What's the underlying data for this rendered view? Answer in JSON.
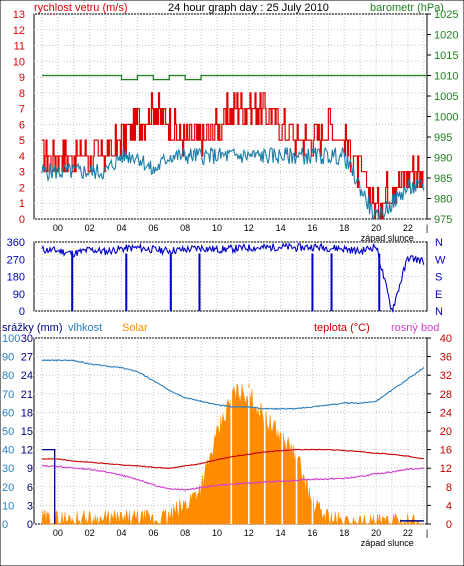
{
  "header": {
    "left_label": "rychlost vetru (m/s)",
    "title": "24 hour graph day : 25 July 2010",
    "right_label": "barometr (hPa)"
  },
  "panel1": {
    "left_ticks": [
      "13",
      "12",
      "11",
      "10",
      "9",
      "8",
      "7",
      "6",
      "5",
      "4",
      "3",
      "2",
      "1",
      "0"
    ],
    "right_ticks": [
      "1025",
      "1020",
      "1015",
      "1010",
      "1005",
      "1000",
      "995",
      "990",
      "985",
      "980",
      "975"
    ]
  },
  "xticks": [
    "00",
    "02",
    "04",
    "06",
    "08",
    "10",
    "12",
    "14",
    "16",
    "18",
    "20",
    "22"
  ],
  "sunset_label": "západ slunce",
  "panel2": {
    "left_ticks": [
      "360",
      "270",
      "180",
      "90",
      "0"
    ],
    "right_labels": [
      "N",
      "W",
      "S",
      "E",
      "N"
    ]
  },
  "panel3": {
    "header_labels": {
      "srazky": "srážky (mm)",
      "vlhkost": "vlhkost",
      "solar": "Solar",
      "teplota": "teplota (°C)",
      "rosny_bod": "rosný bod"
    },
    "srazky_ticks": [
      "30",
      "27",
      "24",
      "21",
      "18",
      "15",
      "12",
      "9",
      "6",
      "3",
      "0"
    ],
    "vlhkost_ticks": [
      "100",
      "90",
      "80",
      "70",
      "60",
      "50",
      "40",
      "30",
      "20",
      "10",
      "0"
    ],
    "right_ticks": [
      "40",
      "36",
      "32",
      "28",
      "24",
      "20",
      "16",
      "12",
      "8",
      "4",
      "0"
    ]
  },
  "colors": {
    "wind_gust": "#e00000",
    "wind_avg": "#1a7fa8",
    "barometer": "#208020",
    "wind_dir": "#0000c8",
    "humidity": "#2a7fc0",
    "solar": "#ff8c00",
    "temperature": "#c80000",
    "dewpoint": "#d040d0",
    "rain": "#000080",
    "grid": "#c8c8c8",
    "left_axis_red": "#e00000",
    "left_axis_blue": "#0000c0"
  },
  "chart_data": [
    {
      "type": "line",
      "series": [
        {
          "name": "rychlost vetru (m/s)",
          "x": [
            -1,
            0,
            1,
            2,
            3,
            4,
            5,
            6,
            7,
            8,
            9,
            10,
            11,
            12,
            13,
            14,
            15,
            16,
            17,
            18,
            19,
            20,
            21,
            22,
            23
          ],
          "values": [
            3,
            3,
            3,
            3,
            3,
            4,
            4,
            3,
            4,
            4,
            4,
            4,
            4,
            4,
            4,
            4,
            4,
            4,
            4,
            4,
            2,
            0,
            1,
            2,
            2
          ]
        },
        {
          "name": "barometr (hPa)",
          "x": [
            -1,
            0,
            1,
            2,
            3,
            4,
            5,
            6,
            7,
            8,
            9,
            10,
            11,
            12,
            13,
            14,
            15,
            16,
            17,
            18,
            19,
            20,
            21,
            22,
            23
          ],
          "values": [
            1010,
            1010,
            1010,
            1010,
            1010,
            1009,
            1010,
            1009,
            1010,
            1009,
            1010,
            1010,
            1010,
            1010,
            1010,
            1010,
            1010,
            1010,
            1010,
            1010,
            1010,
            1010,
            1010,
            1010,
            1010
          ]
        }
      ],
      "wind_gust": {
        "x": [
          -1,
          0,
          1,
          2,
          3,
          4,
          5,
          6,
          7,
          8,
          9,
          10,
          11,
          12,
          13,
          14,
          15,
          16,
          17,
          18,
          19,
          20,
          21,
          22,
          23
        ],
        "values": [
          4,
          4,
          4,
          4,
          4,
          5,
          6,
          7,
          6,
          5,
          5,
          6,
          7,
          7,
          7,
          6,
          5,
          5,
          6,
          5,
          3,
          1,
          2,
          3,
          3
        ]
      },
      "ylim": [
        0,
        13
      ],
      "y2lim": [
        975,
        1025
      ],
      "xlim": [
        -1.5,
        23.2
      ]
    },
    {
      "type": "scatter",
      "series": [
        {
          "name": "wind direction",
          "x": [
            -1,
            0,
            1,
            2,
            3,
            4,
            5,
            6,
            7,
            8,
            9,
            10,
            11,
            12,
            13,
            14,
            15,
            16,
            17,
            18,
            19,
            20,
            21,
            22,
            23
          ],
          "values": [
            320,
            315,
            300,
            320,
            310,
            325,
            330,
            320,
            315,
            320,
            330,
            320,
            325,
            330,
            330,
            335,
            330,
            335,
            330,
            325,
            310,
            340,
            0,
            280,
            260
          ]
        }
      ],
      "ylim": [
        0,
        360
      ],
      "spikes_to_zero_hours": [
        0.9,
        4.3,
        7.1,
        8.9,
        16.0,
        17.2,
        20.2
      ]
    },
    {
      "type": "area",
      "series": [
        {
          "name": "vlhkost",
          "x": [
            -1,
            0,
            1,
            2,
            3,
            4,
            5,
            6,
            7,
            8,
            9,
            10,
            11,
            12,
            13,
            14,
            15,
            16,
            17,
            18,
            19,
            20,
            21,
            22,
            23
          ],
          "values": [
            88,
            88,
            88,
            86,
            85,
            84,
            82,
            77,
            72,
            68,
            66,
            64,
            63,
            63,
            62,
            62,
            62,
            63,
            64,
            65,
            65,
            66,
            72,
            78,
            84
          ]
        },
        {
          "name": "Solar",
          "x": [
            -1,
            0,
            1,
            2,
            3,
            4,
            5,
            6,
            7,
            8,
            9,
            10,
            11,
            12,
            13,
            14,
            15,
            16,
            17,
            18,
            19,
            20,
            21,
            22,
            23
          ],
          "values": [
            0.6,
            0.6,
            0.6,
            0.6,
            0.6,
            0.6,
            0.6,
            0.6,
            1,
            3,
            6,
            14,
            21,
            21,
            17,
            14,
            11,
            3,
            1,
            0,
            0,
            0,
            0,
            0,
            0
          ]
        },
        {
          "name": "teplota (°C)",
          "x": [
            -1,
            0,
            1,
            2,
            3,
            4,
            5,
            6,
            7,
            8,
            9,
            10,
            11,
            12,
            13,
            14,
            15,
            16,
            17,
            18,
            19,
            20,
            21,
            22,
            23
          ],
          "values": [
            14,
            14,
            13.5,
            13.3,
            13,
            12.7,
            12.5,
            12.2,
            12,
            12.5,
            13,
            13.8,
            14.5,
            15,
            15.5,
            15.8,
            16,
            16,
            16,
            15.8,
            15.6,
            15.2,
            15,
            14.6,
            14
          ]
        },
        {
          "name": "rosný bod",
          "x": [
            -1,
            0,
            1,
            2,
            3,
            4,
            5,
            6,
            7,
            8,
            9,
            10,
            11,
            12,
            13,
            14,
            15,
            16,
            17,
            18,
            19,
            20,
            21,
            22,
            23
          ],
          "values": [
            12.5,
            12.4,
            12,
            11.8,
            11.2,
            10.5,
            9.6,
            8.4,
            7.6,
            7.4,
            7.8,
            8.3,
            8.6,
            8.8,
            9,
            9.2,
            9.4,
            9.6,
            9.7,
            9.8,
            10.2,
            10.8,
            11.2,
            11.8,
            12
          ]
        },
        {
          "name": "srážky (mm)",
          "x": [
            -1,
            -0.2,
            -0.15,
            23
          ],
          "values": [
            12,
            12,
            0,
            0.5
          ]
        }
      ],
      "ylim_srazky": [
        0,
        30
      ],
      "ylim_vlhkost": [
        0,
        100
      ],
      "ylim_temp": [
        0,
        40
      ]
    }
  ]
}
